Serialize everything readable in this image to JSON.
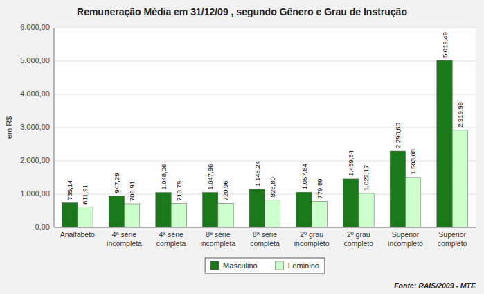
{
  "chart_data": {
    "type": "bar",
    "title": "Remuneração Média em 31/12/09 , segundo Gênero e Grau de Instrução",
    "ylabel": "em R$",
    "annotations": [
      "Fonte: RAIS/2009 - MTE"
    ],
    "categories": [
      "Analfabeto",
      "4ª série\nincompleta",
      "4ª série\ncompleta",
      "8ª série\nincompleta",
      "8ª série\ncompleta",
      "2º grau\nincompleto",
      "2º grau\ncompleto",
      "Superior\nincompleto",
      "Superior\ncompleto"
    ],
    "series": [
      {
        "name": "Masculino",
        "color": "#1a7a1a",
        "values": [
          735.14,
          947.29,
          1048.06,
          1047.96,
          1148.24,
          1057.84,
          1459.84,
          2290.6,
          5019.49
        ],
        "value_labels": [
          "735,14",
          "947,29",
          "1.048,06",
          "1.047,96",
          "1.148,24",
          "1.057,84",
          "1.459,84",
          "2.290,60",
          "5.019,49"
        ]
      },
      {
        "name": "Feminino",
        "color": "#ccffcc",
        "values": [
          611.91,
          708.91,
          713.79,
          720.96,
          826.8,
          779.89,
          1022.17,
          1503.08,
          2919.99
        ],
        "value_labels": [
          "611,91",
          "708,91",
          "713,79",
          "720,96",
          "826,80",
          "779,89",
          "1.022,17",
          "1.503,08",
          "2.919,99"
        ]
      }
    ],
    "ylim": [
      0,
      6000
    ],
    "yticks": [
      {
        "value": 0,
        "label": "0,00"
      },
      {
        "value": 1000,
        "label": "1.000,00"
      },
      {
        "value": 2000,
        "label": "2.000,00"
      },
      {
        "value": 3000,
        "label": "3.000,00"
      },
      {
        "value": 4000,
        "label": "4.000,00"
      },
      {
        "value": 5000,
        "label": "5.000,00"
      },
      {
        "value": 6000,
        "label": "6.000,00"
      }
    ],
    "grid": true,
    "data_labels": true,
    "legend": "bottom"
  }
}
